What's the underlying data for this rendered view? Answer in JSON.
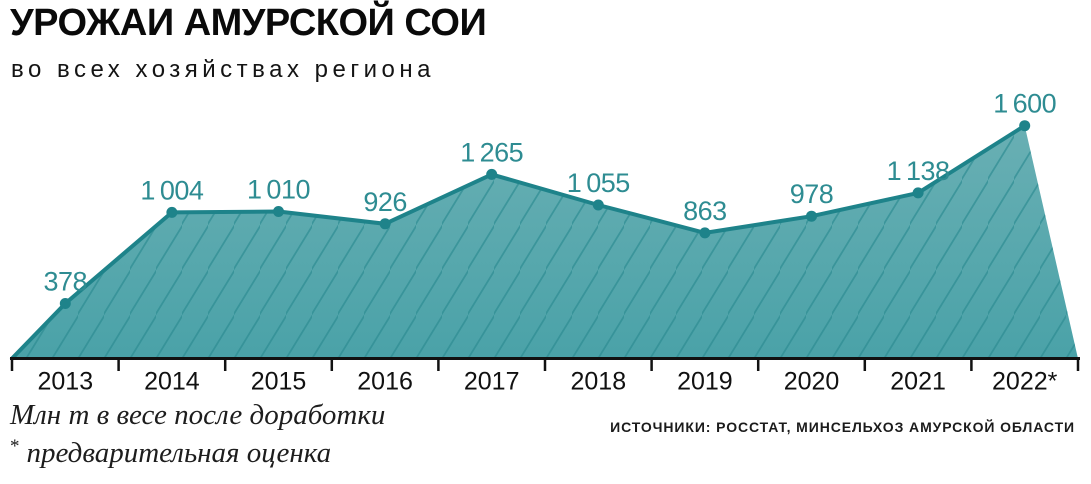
{
  "header": {
    "title": "УРОЖАИ АМУРСКОЙ СОИ",
    "subtitle": "во всех хозяйствах региона"
  },
  "chart_data": {
    "type": "area",
    "title": "УРОЖАИ АМУРСКОЙ СОИ",
    "subtitle": "во всех хозяйствах региона",
    "categories": [
      "2013",
      "2014",
      "2015",
      "2016",
      "2017",
      "2018",
      "2019",
      "2020",
      "2021",
      "2022*"
    ],
    "values": [
      378,
      1004,
      1010,
      926,
      1265,
      1055,
      863,
      978,
      1138,
      1600
    ],
    "point_labels": [
      "378",
      "1 004",
      "1 010",
      "926",
      "1 265",
      "1 055",
      "863",
      "978",
      "1 138",
      "1 600"
    ],
    "xlabel": "",
    "ylabel": "Млн т в весе после доработки",
    "ylim": [
      0,
      1700
    ],
    "grid": false,
    "legend": "none",
    "colors": {
      "line": "#1e838a",
      "dot": "#1e838a",
      "fill_top": "#6db1b5",
      "fill_bottom": "#4aa2a8",
      "hatch": "#2b8a90",
      "value_label": "#2e8c92",
      "axis": "#111111"
    }
  },
  "footer": {
    "note1": "Млн т в весе после доработки",
    "note_mark": "*",
    "note2": "предварительная оценка",
    "sources": "ИСТОЧНИКИ: РОССТАТ, МИНСЕЛЬХОЗ АМУРСКОЙ ОБЛАСТИ"
  }
}
